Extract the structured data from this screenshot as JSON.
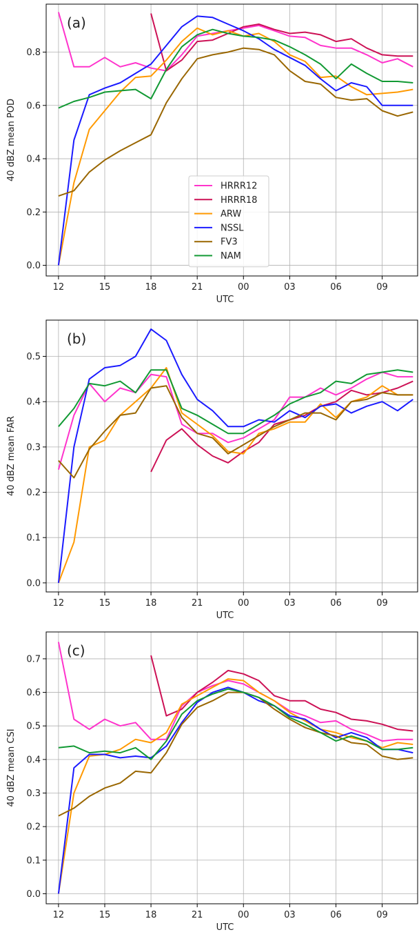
{
  "figure": {
    "legend_location": "panel-a lower-center"
  },
  "chart_data": [
    {
      "type": "line",
      "panel_label": "(a)",
      "xlabel": "UTC",
      "ylabel": "40 dBZ mean POD",
      "xlim": [
        11.2,
        35.3
      ],
      "ylim": [
        -0.04,
        0.98
      ],
      "xticks": [
        12,
        15,
        18,
        21,
        24,
        27,
        30,
        33,
        36
      ],
      "xtick_labels": [
        "12",
        "15",
        "18",
        "21",
        "00",
        "03",
        "06",
        "09",
        "12"
      ],
      "yticks": [
        0.0,
        0.2,
        0.4,
        0.6,
        0.8
      ],
      "ytick_labels": [
        "0.0",
        "0.2",
        "0.4",
        "0.6",
        "0.8"
      ],
      "grid": true,
      "show_legend": true,
      "series": [
        {
          "name": "HRRR12",
          "color": "#ff33cc",
          "x": [
            12,
            13,
            14,
            15,
            16,
            17,
            18,
            19,
            20,
            21,
            22,
            23,
            24,
            25,
            26,
            27,
            28,
            29,
            30,
            31,
            32,
            33,
            34,
            35
          ],
          "values": [
            0.95,
            0.745,
            0.745,
            0.78,
            0.745,
            0.76,
            0.74,
            0.73,
            0.79,
            0.86,
            0.87,
            0.88,
            0.89,
            0.9,
            0.88,
            0.86,
            0.855,
            0.825,
            0.815,
            0.815,
            0.79,
            0.76,
            0.775,
            0.745
          ]
        },
        {
          "name": "HRRR18",
          "color": "#cc1155",
          "x": [
            18,
            19,
            20,
            21,
            22,
            23,
            24,
            25,
            26,
            27,
            28,
            29,
            30,
            31,
            32,
            33,
            34,
            35
          ],
          "values": [
            0.945,
            0.73,
            0.77,
            0.84,
            0.845,
            0.87,
            0.895,
            0.905,
            0.885,
            0.87,
            0.875,
            0.865,
            0.84,
            0.85,
            0.815,
            0.79,
            0.785,
            0.785
          ]
        },
        {
          "name": "ARW",
          "color": "#ff9900",
          "x": [
            12,
            13,
            14,
            15,
            16,
            17,
            18,
            19,
            20,
            21,
            22,
            23,
            24,
            25,
            26,
            27,
            28,
            29,
            30,
            31,
            32,
            33,
            34,
            35
          ],
          "values": [
            0.0,
            0.31,
            0.51,
            0.58,
            0.65,
            0.705,
            0.71,
            0.77,
            0.84,
            0.89,
            0.865,
            0.88,
            0.86,
            0.87,
            0.84,
            0.79,
            0.765,
            0.705,
            0.71,
            0.67,
            0.64,
            0.645,
            0.65,
            0.66
          ]
        },
        {
          "name": "NSSL",
          "color": "#1a1aff",
          "x": [
            12,
            13,
            14,
            15,
            16,
            17,
            18,
            19,
            20,
            21,
            22,
            23,
            24,
            25,
            26,
            27,
            28,
            29,
            30,
            31,
            32,
            33,
            34,
            35
          ],
          "values": [
            0.0,
            0.47,
            0.64,
            0.665,
            0.685,
            0.72,
            0.755,
            0.825,
            0.895,
            0.935,
            0.93,
            0.905,
            0.88,
            0.85,
            0.81,
            0.78,
            0.75,
            0.7,
            0.655,
            0.685,
            0.67,
            0.6,
            0.6,
            0.6
          ]
        },
        {
          "name": "FV3",
          "color": "#996600",
          "x": [
            12,
            13,
            14,
            15,
            16,
            17,
            18,
            19,
            20,
            21,
            22,
            23,
            24,
            25,
            26,
            27,
            28,
            29,
            30,
            31,
            32,
            33,
            34,
            35
          ],
          "values": [
            0.26,
            0.28,
            0.35,
            0.395,
            0.43,
            0.46,
            0.49,
            0.61,
            0.7,
            0.775,
            0.79,
            0.8,
            0.815,
            0.81,
            0.79,
            0.73,
            0.69,
            0.68,
            0.63,
            0.62,
            0.625,
            0.58,
            0.56,
            0.575
          ]
        },
        {
          "name": "NAM",
          "color": "#119933",
          "x": [
            12,
            13,
            14,
            15,
            16,
            17,
            18,
            19,
            20,
            21,
            22,
            23,
            24,
            25,
            26,
            27,
            28,
            29,
            30,
            31,
            32,
            33,
            34,
            35
          ],
          "values": [
            0.59,
            0.615,
            0.63,
            0.65,
            0.655,
            0.66,
            0.625,
            0.735,
            0.82,
            0.865,
            0.885,
            0.87,
            0.86,
            0.855,
            0.845,
            0.82,
            0.79,
            0.755,
            0.7,
            0.755,
            0.72,
            0.69,
            0.69,
            0.685
          ]
        }
      ]
    },
    {
      "type": "line",
      "panel_label": "(b)",
      "xlabel": "UTC",
      "ylabel": "40 dBZ mean FAR",
      "xlim": [
        11.2,
        35.3
      ],
      "ylim": [
        -0.02,
        0.58
      ],
      "xticks": [
        12,
        15,
        18,
        21,
        24,
        27,
        30,
        33,
        36
      ],
      "xtick_labels": [
        "12",
        "15",
        "18",
        "21",
        "00",
        "03",
        "06",
        "09",
        "12"
      ],
      "yticks": [
        0.0,
        0.1,
        0.2,
        0.3,
        0.4,
        0.5
      ],
      "ytick_labels": [
        "0.0",
        "0.1",
        "0.2",
        "0.3",
        "0.4",
        "0.5"
      ],
      "grid": true,
      "show_legend": false,
      "series": [
        {
          "name": "HRRR12",
          "color": "#ff33cc",
          "x": [
            12,
            13,
            14,
            15,
            16,
            17,
            18,
            19,
            20,
            21,
            22,
            23,
            24,
            25,
            26,
            27,
            28,
            29,
            30,
            31,
            32,
            33,
            34,
            35
          ],
          "values": [
            0.25,
            0.37,
            0.44,
            0.4,
            0.43,
            0.42,
            0.46,
            0.455,
            0.35,
            0.33,
            0.33,
            0.31,
            0.32,
            0.34,
            0.36,
            0.41,
            0.41,
            0.43,
            0.415,
            0.43,
            0.45,
            0.465,
            0.455,
            0.455
          ]
        },
        {
          "name": "HRRR18",
          "color": "#cc1155",
          "x": [
            18,
            19,
            20,
            21,
            22,
            23,
            24,
            25,
            26,
            27,
            28,
            29,
            30,
            31,
            32,
            33,
            34,
            35
          ],
          "values": [
            0.245,
            0.315,
            0.34,
            0.305,
            0.28,
            0.265,
            0.29,
            0.31,
            0.35,
            0.36,
            0.37,
            0.39,
            0.4,
            0.425,
            0.415,
            0.42,
            0.43,
            0.445
          ]
        },
        {
          "name": "ARW",
          "color": "#ff9900",
          "x": [
            12,
            13,
            14,
            15,
            16,
            17,
            18,
            19,
            20,
            21,
            22,
            23,
            24,
            25,
            26,
            27,
            28,
            29,
            30,
            31,
            32,
            33,
            34,
            35
          ],
          "values": [
            0.0,
            0.09,
            0.3,
            0.315,
            0.37,
            0.4,
            0.43,
            0.475,
            0.375,
            0.35,
            0.325,
            0.29,
            0.285,
            0.33,
            0.34,
            0.355,
            0.355,
            0.395,
            0.365,
            0.4,
            0.41,
            0.435,
            0.415,
            0.415
          ]
        },
        {
          "name": "NSSL",
          "color": "#1a1aff",
          "x": [
            12,
            13,
            14,
            15,
            16,
            17,
            18,
            19,
            20,
            21,
            22,
            23,
            24,
            25,
            26,
            27,
            28,
            29,
            30,
            31,
            32,
            33,
            34,
            35
          ],
          "values": [
            0.0,
            0.3,
            0.45,
            0.475,
            0.48,
            0.5,
            0.56,
            0.535,
            0.46,
            0.405,
            0.38,
            0.345,
            0.345,
            0.36,
            0.355,
            0.38,
            0.365,
            0.39,
            0.395,
            0.375,
            0.39,
            0.4,
            0.38,
            0.405
          ]
        },
        {
          "name": "FV3",
          "color": "#996600",
          "x": [
            12,
            13,
            14,
            15,
            16,
            17,
            18,
            19,
            20,
            21,
            22,
            23,
            24,
            25,
            26,
            27,
            28,
            29,
            30,
            31,
            32,
            33,
            34,
            35
          ],
          "values": [
            0.27,
            0.232,
            0.295,
            0.335,
            0.37,
            0.375,
            0.43,
            0.435,
            0.365,
            0.33,
            0.32,
            0.285,
            0.305,
            0.325,
            0.345,
            0.36,
            0.375,
            0.375,
            0.36,
            0.4,
            0.405,
            0.42,
            0.415,
            0.415
          ]
        },
        {
          "name": "NAM",
          "color": "#119933",
          "x": [
            12,
            13,
            14,
            15,
            16,
            17,
            18,
            19,
            20,
            21,
            22,
            23,
            24,
            25,
            26,
            27,
            28,
            29,
            30,
            31,
            32,
            33,
            34,
            35
          ],
          "values": [
            0.345,
            0.385,
            0.44,
            0.435,
            0.445,
            0.42,
            0.47,
            0.47,
            0.385,
            0.37,
            0.35,
            0.33,
            0.33,
            0.35,
            0.37,
            0.395,
            0.41,
            0.42,
            0.445,
            0.44,
            0.46,
            0.465,
            0.47,
            0.465
          ]
        }
      ]
    },
    {
      "type": "line",
      "panel_label": "(c)",
      "xlabel": "UTC",
      "ylabel": "40 dBZ mean CSI",
      "xlim": [
        11.2,
        35.3
      ],
      "ylim": [
        -0.03,
        0.78
      ],
      "xticks": [
        12,
        15,
        18,
        21,
        24,
        27,
        30,
        33,
        36
      ],
      "xtick_labels": [
        "12",
        "15",
        "18",
        "21",
        "00",
        "03",
        "06",
        "09",
        "12"
      ],
      "yticks": [
        0.0,
        0.1,
        0.2,
        0.3,
        0.4,
        0.5,
        0.6,
        0.7
      ],
      "ytick_labels": [
        "0.0",
        "0.1",
        "0.2",
        "0.3",
        "0.4",
        "0.5",
        "0.6",
        "0.7"
      ],
      "grid": true,
      "show_legend": false,
      "series": [
        {
          "name": "HRRR12",
          "color": "#ff33cc",
          "x": [
            12,
            13,
            14,
            15,
            16,
            17,
            18,
            19,
            20,
            21,
            22,
            23,
            24,
            25,
            26,
            27,
            28,
            29,
            30,
            31,
            32,
            33,
            34,
            35
          ],
          "values": [
            0.75,
            0.52,
            0.49,
            0.52,
            0.5,
            0.51,
            0.46,
            0.46,
            0.56,
            0.6,
            0.62,
            0.635,
            0.625,
            0.6,
            0.575,
            0.545,
            0.53,
            0.51,
            0.515,
            0.49,
            0.475,
            0.455,
            0.46,
            0.46
          ]
        },
        {
          "name": "HRRR18",
          "color": "#cc1155",
          "x": [
            18,
            19,
            20,
            21,
            22,
            23,
            24,
            25,
            26,
            27,
            28,
            29,
            30,
            31,
            32,
            33,
            34,
            35
          ],
          "values": [
            0.71,
            0.53,
            0.55,
            0.6,
            0.63,
            0.665,
            0.655,
            0.635,
            0.59,
            0.575,
            0.575,
            0.55,
            0.54,
            0.52,
            0.515,
            0.505,
            0.49,
            0.485
          ]
        },
        {
          "name": "ARW",
          "color": "#ff9900",
          "x": [
            12,
            13,
            14,
            15,
            16,
            17,
            18,
            19,
            20,
            21,
            22,
            23,
            24,
            25,
            26,
            27,
            28,
            29,
            30,
            31,
            32,
            33,
            34,
            35
          ],
          "values": [
            0.0,
            0.3,
            0.41,
            0.415,
            0.43,
            0.46,
            0.45,
            0.48,
            0.565,
            0.59,
            0.615,
            0.64,
            0.635,
            0.6,
            0.575,
            0.54,
            0.515,
            0.49,
            0.48,
            0.465,
            0.455,
            0.435,
            0.45,
            0.445
          ]
        },
        {
          "name": "NSSL",
          "color": "#1a1aff",
          "x": [
            12,
            13,
            14,
            15,
            16,
            17,
            18,
            19,
            20,
            21,
            22,
            23,
            24,
            25,
            26,
            27,
            28,
            29,
            30,
            31,
            32,
            33,
            34,
            35
          ],
          "values": [
            0.0,
            0.375,
            0.415,
            0.415,
            0.405,
            0.41,
            0.405,
            0.44,
            0.51,
            0.57,
            0.6,
            0.615,
            0.6,
            0.575,
            0.56,
            0.53,
            0.52,
            0.49,
            0.465,
            0.48,
            0.465,
            0.43,
            0.43,
            0.42
          ]
        },
        {
          "name": "FV3",
          "color": "#996600",
          "x": [
            12,
            13,
            14,
            15,
            16,
            17,
            18,
            19,
            20,
            21,
            22,
            23,
            24,
            25,
            26,
            27,
            28,
            29,
            30,
            31,
            32,
            33,
            34,
            35
          ],
          "values": [
            0.232,
            0.255,
            0.29,
            0.315,
            0.33,
            0.365,
            0.36,
            0.42,
            0.505,
            0.555,
            0.575,
            0.6,
            0.6,
            0.585,
            0.55,
            0.52,
            0.495,
            0.48,
            0.47,
            0.45,
            0.445,
            0.41,
            0.4,
            0.405
          ]
        },
        {
          "name": "NAM",
          "color": "#119933",
          "x": [
            12,
            13,
            14,
            15,
            16,
            17,
            18,
            19,
            20,
            21,
            22,
            23,
            24,
            25,
            26,
            27,
            28,
            29,
            30,
            31,
            32,
            33,
            34,
            35
          ],
          "values": [
            0.435,
            0.44,
            0.42,
            0.425,
            0.42,
            0.435,
            0.4,
            0.455,
            0.535,
            0.575,
            0.595,
            0.61,
            0.6,
            0.585,
            0.56,
            0.525,
            0.505,
            0.48,
            0.455,
            0.47,
            0.455,
            0.43,
            0.43,
            0.435
          ]
        }
      ]
    }
  ]
}
